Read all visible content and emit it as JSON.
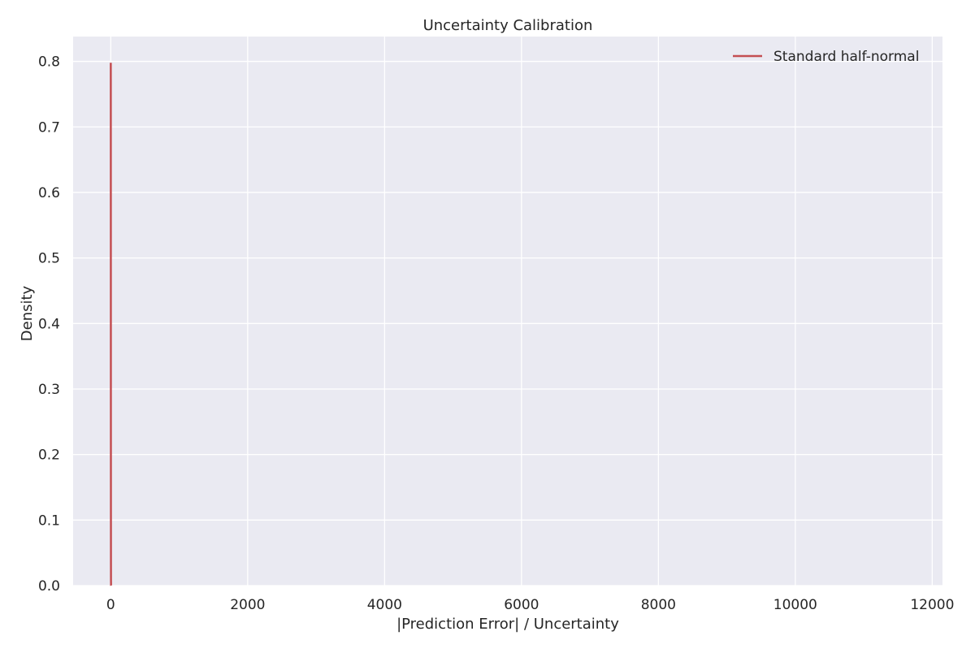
{
  "chart_data": {
    "type": "line",
    "title": "Uncertainty Calibration",
    "xlabel": "|Prediction Error| / Uncertainty",
    "ylabel": "Density",
    "xlim": [
      -550,
      12150
    ],
    "ylim": [
      0,
      0.8379
    ],
    "xticks": [
      0,
      2000,
      4000,
      6000,
      8000,
      10000,
      12000
    ],
    "xtick_labels": [
      "0",
      "2000",
      "4000",
      "6000",
      "8000",
      "10000",
      "12000"
    ],
    "yticks": [
      0,
      0.1,
      0.2,
      0.3,
      0.4,
      0.5,
      0.6,
      0.7,
      0.8
    ],
    "ytick_labels": [
      "0.0",
      "0.1",
      "0.2",
      "0.3",
      "0.4",
      "0.5",
      "0.6",
      "0.7",
      "0.8"
    ],
    "grid": true,
    "legend_position": "top-right",
    "series": [
      {
        "name": "Standard half-normal",
        "color": "#c44e52",
        "x": [
          0,
          0.25,
          0.5,
          0.75,
          1,
          1.5,
          2,
          2.5,
          3,
          4,
          5
        ],
        "y": [
          0.7979,
          0.7734,
          0.7041,
          0.6023,
          0.4839,
          0.2591,
          0.108,
          0.035,
          0.0089,
          0.0003,
          0.0
        ]
      }
    ]
  },
  "style": {
    "plot_background": "#eaeaf2",
    "grid_color": "#ffffff",
    "text_color": "#262626"
  }
}
